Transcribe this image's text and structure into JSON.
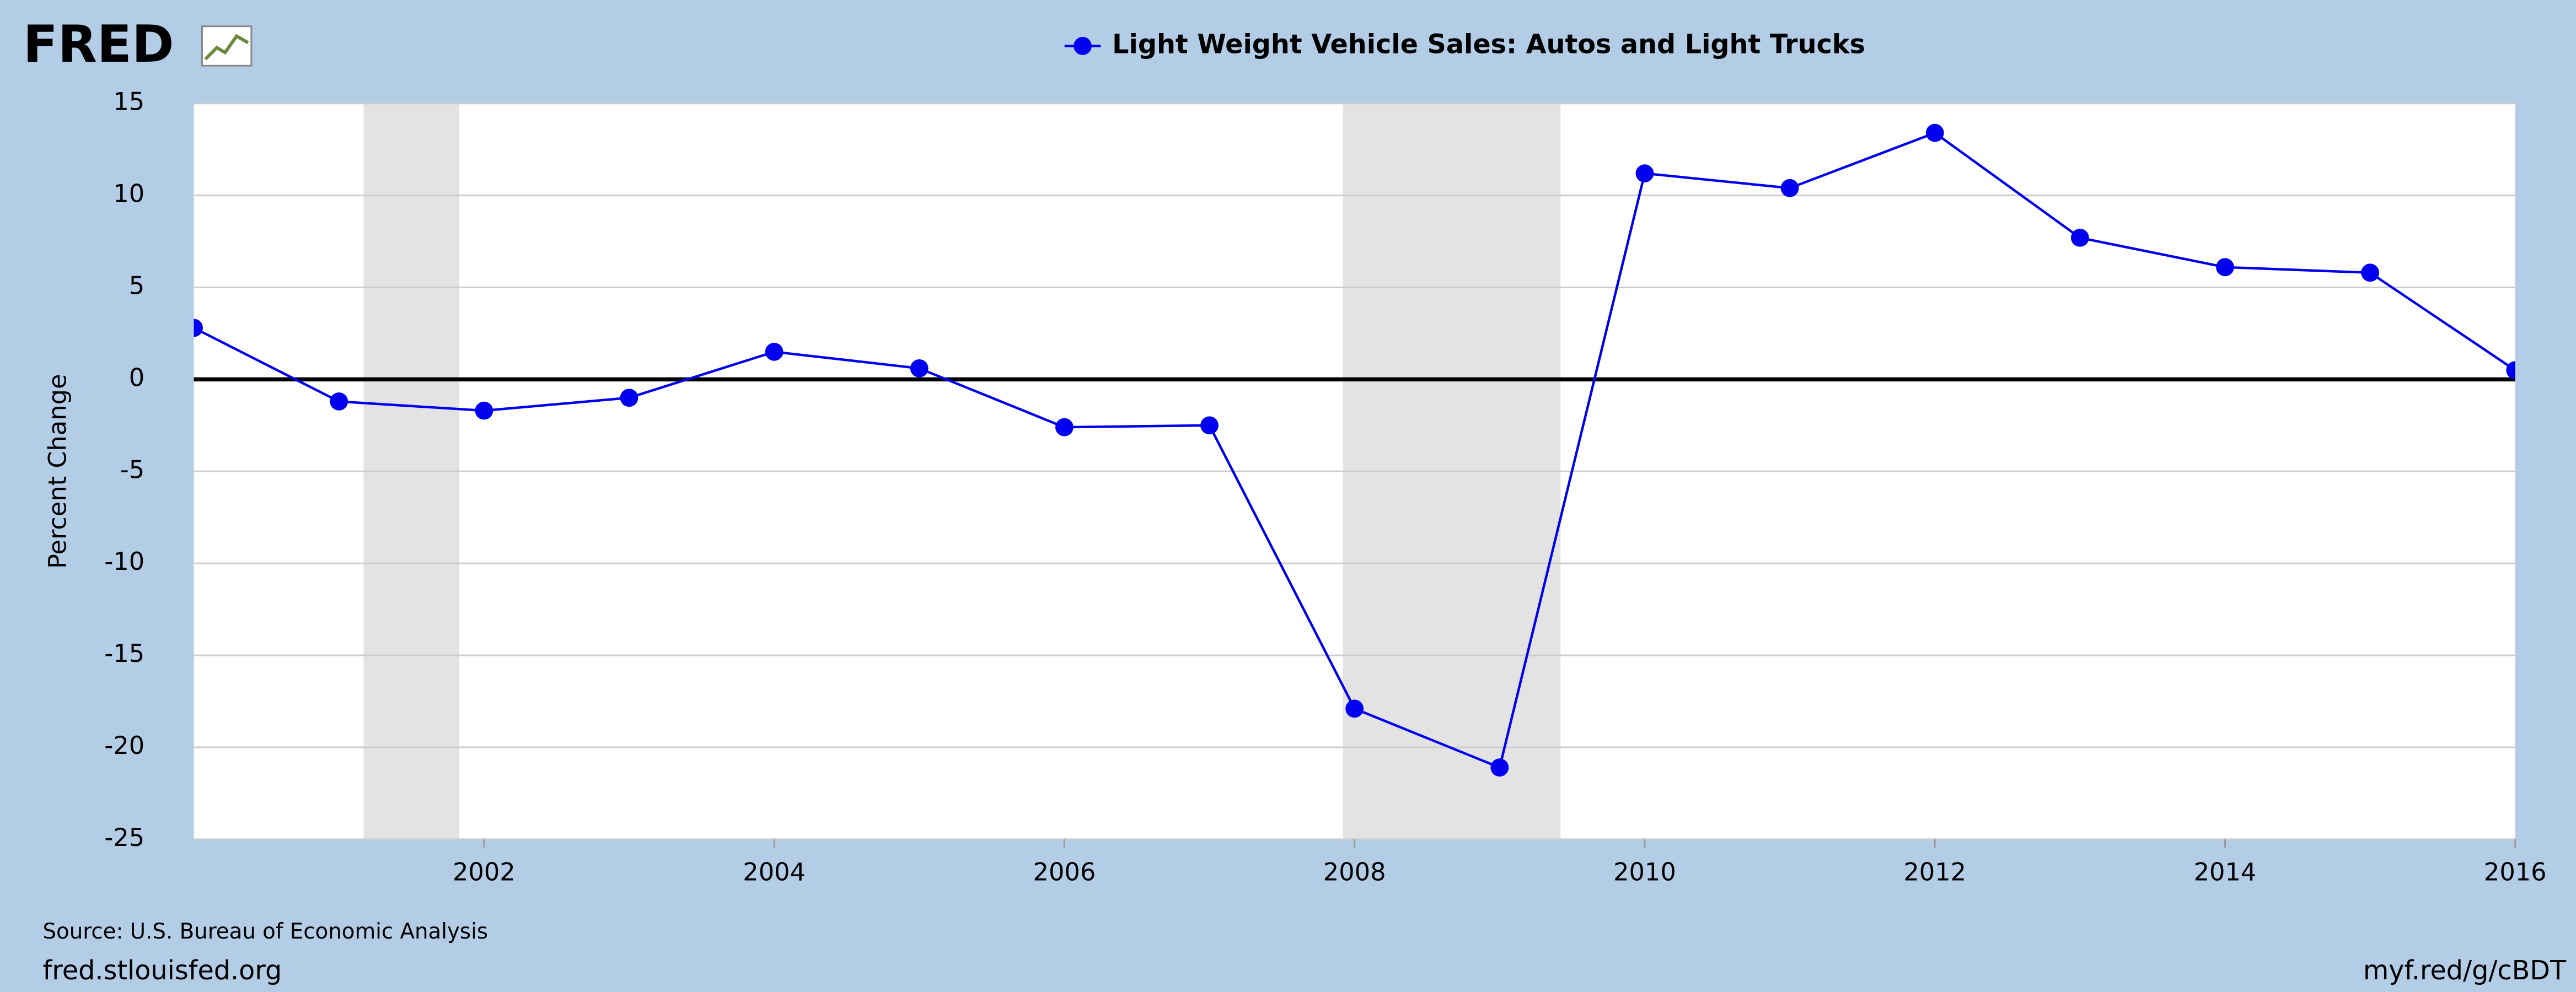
{
  "logo": "FRED",
  "chart_data": {
    "type": "line",
    "y_label": "Percent Change",
    "x": [
      2000,
      2001,
      2002,
      2003,
      2004,
      2005,
      2006,
      2007,
      2008,
      2009,
      2010,
      2011,
      2012,
      2013,
      2014,
      2015,
      2016
    ],
    "series": [
      {
        "name": "Light Weight Vehicle Sales: Autos and Light Trucks",
        "color": "#0000ee",
        "values": [
          2.8,
          -1.2,
          -1.7,
          -1.0,
          1.5,
          0.6,
          -2.6,
          -2.5,
          -17.9,
          -21.1,
          11.2,
          10.4,
          13.4,
          7.7,
          6.1,
          5.8,
          0.5
        ]
      }
    ],
    "xlim": [
      2000,
      2016
    ],
    "xticks": [
      2002,
      2004,
      2006,
      2008,
      2010,
      2012,
      2014,
      2016
    ],
    "ylim": [
      -25,
      15
    ],
    "yticks": [
      -25,
      -20,
      -15,
      -10,
      -5,
      0,
      5,
      10,
      15
    ],
    "grid": true,
    "recessions": [
      [
        2001.17,
        2001.83
      ],
      [
        2007.92,
        2009.42
      ]
    ],
    "source": "Source: U.S. Bureau of Economic Analysis",
    "footer_left": "fred.stlouisfed.org",
    "footer_right": "myf.red/g/cBDT"
  }
}
